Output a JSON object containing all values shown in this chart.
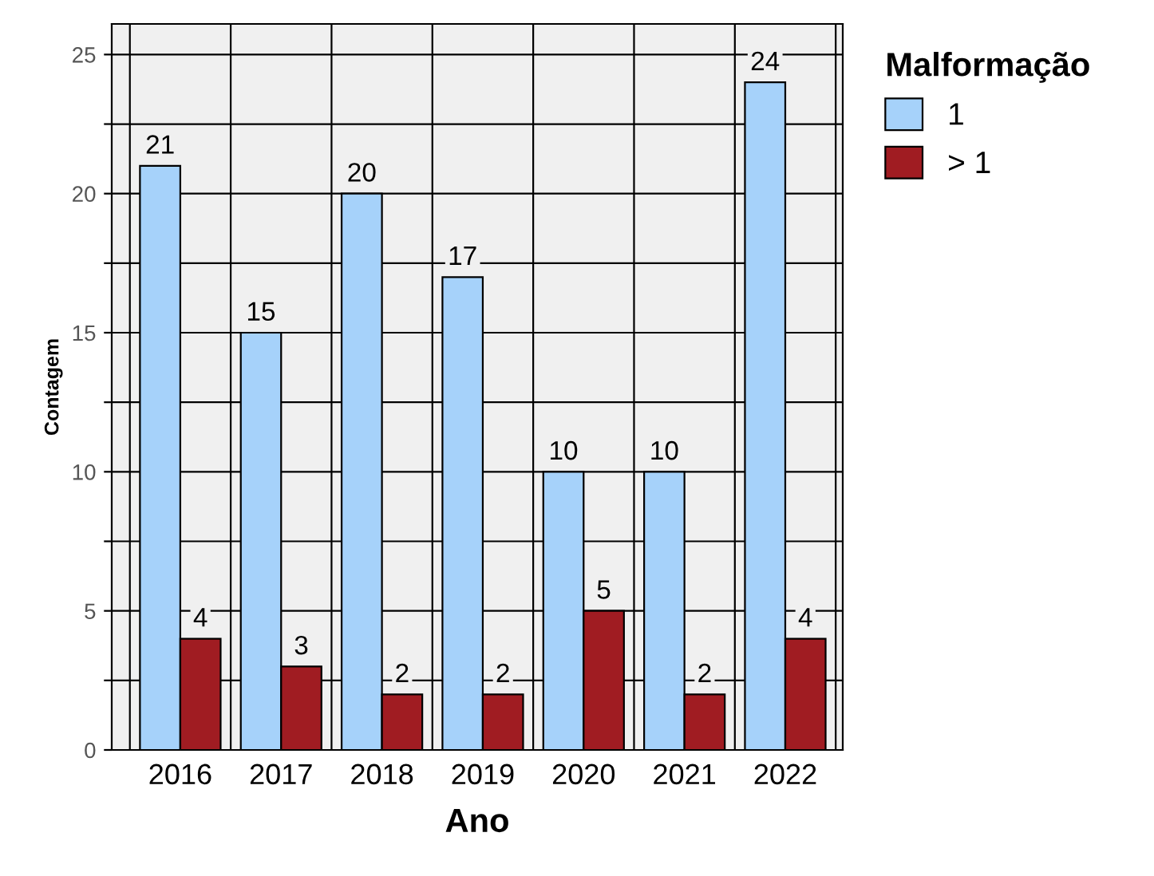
{
  "chart_data": {
    "type": "bar",
    "xlabel": "Ano",
    "ylabel": "Contagem",
    "legend_title": "Malformação",
    "categories": [
      "2016",
      "2017",
      "2018",
      "2019",
      "2020",
      "2021",
      "2022"
    ],
    "series": [
      {
        "name": "1",
        "color": "#a6d2fa",
        "values": [
          21,
          15,
          20,
          17,
          10,
          10,
          24
        ]
      },
      {
        "name": "> 1",
        "color": "#a01c22",
        "values": [
          4,
          3,
          2,
          2,
          5,
          2,
          4
        ]
      }
    ],
    "ylim": [
      0,
      26.1
    ],
    "yticks": [
      0,
      {
        "value": 2.5,
        "label": null
      },
      5,
      {
        "value": 7.5,
        "label": null
      },
      10,
      {
        "value": 12.5,
        "label": null
      },
      15,
      {
        "value": 17.5,
        "label": null
      },
      20,
      {
        "value": 22.5,
        "label": null
      },
      25
    ],
    "grid": true,
    "legend": "top right",
    "data_labels": true
  }
}
